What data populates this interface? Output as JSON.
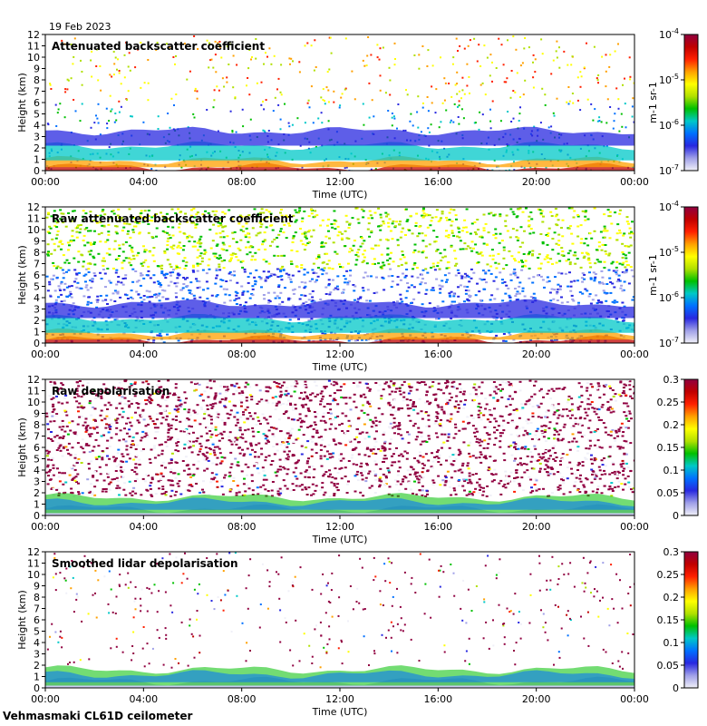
{
  "date": "19 Feb 2023",
  "footer": "Vehmasmaki CL61D ceilometer",
  "colors": {
    "rainbow": [
      "#f0f0f8",
      "#a0a0e8",
      "#2828e0",
      "#0070ff",
      "#00c8c8",
      "#00c000",
      "#b0e000",
      "#ffff00",
      "#ffa000",
      "#ff2000",
      "#c00000",
      "#900040"
    ],
    "background": "#ffffff"
  },
  "chart_data": [
    {
      "type": "heatmap",
      "title": "Attenuated backscatter coefficient",
      "xlabel": "Time (UTC)",
      "ylabel": "Height (km)",
      "xticks": [
        "00:00",
        "04:00",
        "08:00",
        "12:00",
        "16:00",
        "20:00",
        "00:00"
      ],
      "xlim_hours": [
        0,
        24
      ],
      "ylim_km": [
        0,
        12
      ],
      "yticks": [
        "0",
        "1",
        "2",
        "3",
        "4",
        "5",
        "6",
        "7",
        "8",
        "9",
        "10",
        "11",
        "12"
      ],
      "colorbar": {
        "scale": "log",
        "range": [
          1e-07,
          0.0001
        ],
        "unit": "m-1 sr-1",
        "ticks": [
          {
            "base": "10",
            "exp": "-4"
          },
          {
            "base": "10",
            "exp": "-5"
          },
          {
            "base": "10",
            "exp": "-6"
          },
          {
            "base": "10",
            "exp": "-7"
          }
        ]
      }
    },
    {
      "type": "heatmap",
      "title": "Raw attenuated backscatter coefficient",
      "xlabel": "Time (UTC)",
      "ylabel": "Height (km)",
      "xticks": [
        "00:00",
        "04:00",
        "08:00",
        "12:00",
        "16:00",
        "20:00",
        "00:00"
      ],
      "xlim_hours": [
        0,
        24
      ],
      "ylim_km": [
        0,
        12
      ],
      "yticks": [
        "0",
        "1",
        "2",
        "3",
        "4",
        "5",
        "6",
        "7",
        "8",
        "9",
        "10",
        "11",
        "12"
      ],
      "colorbar": {
        "scale": "log",
        "range": [
          1e-07,
          0.0001
        ],
        "unit": "m-1 sr-1",
        "ticks": [
          {
            "base": "10",
            "exp": "-4"
          },
          {
            "base": "10",
            "exp": "-5"
          },
          {
            "base": "10",
            "exp": "-6"
          },
          {
            "base": "10",
            "exp": "-7"
          }
        ]
      }
    },
    {
      "type": "heatmap",
      "title": "Raw depolarisation",
      "xlabel": "Time (UTC)",
      "ylabel": "Height (km)",
      "xticks": [
        "00:00",
        "04:00",
        "08:00",
        "12:00",
        "16:00",
        "20:00",
        "00:00"
      ],
      "xlim_hours": [
        0,
        24
      ],
      "ylim_km": [
        0,
        12
      ],
      "yticks": [
        "0",
        "1",
        "2",
        "3",
        "4",
        "5",
        "6",
        "7",
        "8",
        "9",
        "10",
        "11",
        "12"
      ],
      "colorbar": {
        "scale": "linear",
        "range": [
          0,
          0.3
        ],
        "unit": "",
        "ticks": [
          "0.3",
          "0.25",
          "0.2",
          "0.15",
          "0.1",
          "0.05",
          "0"
        ]
      }
    },
    {
      "type": "heatmap",
      "title": "Smoothed lidar depolarisation",
      "xlabel": "Time (UTC)",
      "ylabel": "Height (km)",
      "xticks": [
        "00:00",
        "04:00",
        "08:00",
        "12:00",
        "16:00",
        "20:00",
        "00:00"
      ],
      "xlim_hours": [
        0,
        24
      ],
      "ylim_km": [
        0,
        12
      ],
      "yticks": [
        "0",
        "1",
        "2",
        "3",
        "4",
        "5",
        "6",
        "7",
        "8",
        "9",
        "10",
        "11",
        "12"
      ],
      "colorbar": {
        "scale": "linear",
        "range": [
          0,
          0.3
        ],
        "unit": "",
        "ticks": [
          "0.3",
          "0.25",
          "0.2",
          "0.15",
          "0.1",
          "0.05",
          "0"
        ]
      }
    }
  ]
}
